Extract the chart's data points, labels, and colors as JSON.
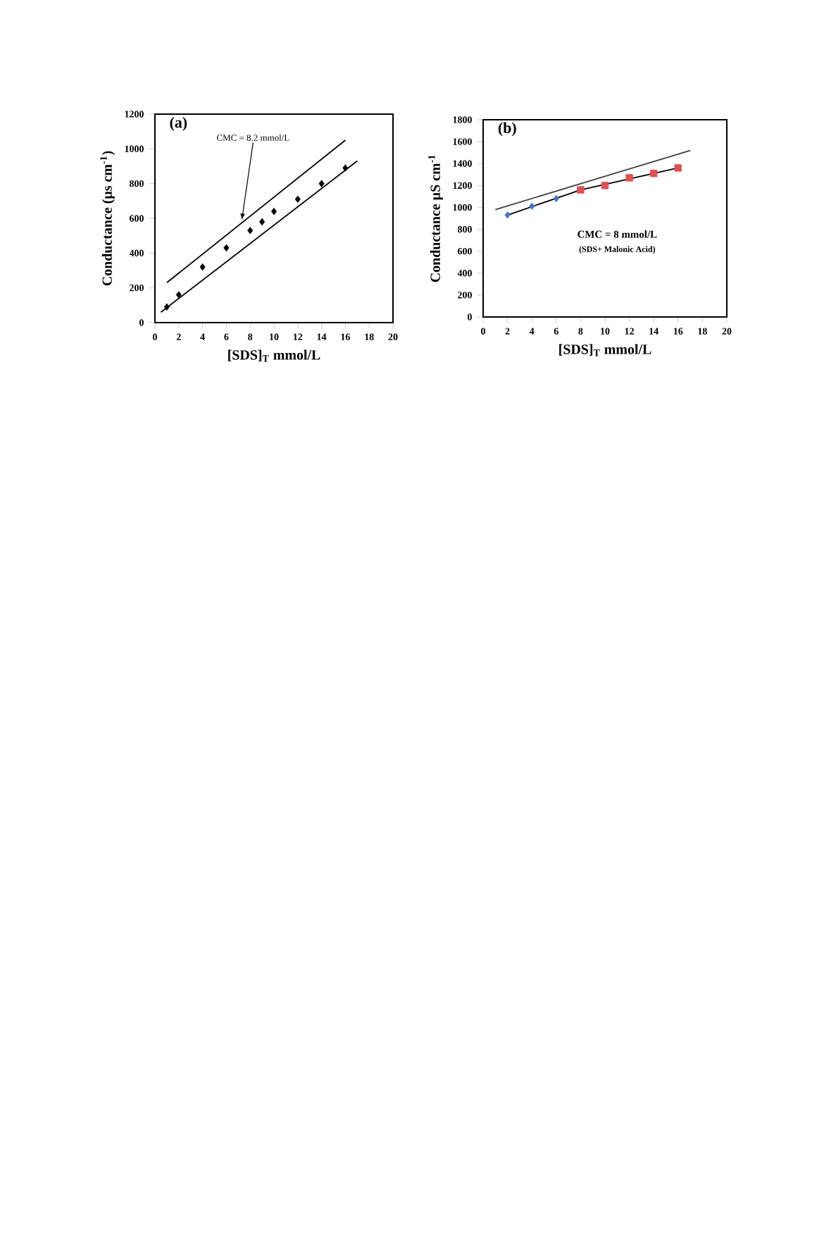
{
  "chart_data": [
    {
      "type": "scatter",
      "title": "(a)",
      "xlabel": "[SDS]$_{T}$ mmol/L",
      "ylabel": "Conductance  (µs cm$^{-1}$)",
      "xlim": [
        0,
        20
      ],
      "xticks": [
        0,
        2,
        4,
        6,
        8,
        10,
        12,
        14,
        16,
        18,
        20
      ],
      "ylim": [
        0,
        1200
      ],
      "yticks": [
        0,
        200,
        400,
        600,
        800,
        1000,
        1200
      ],
      "series": [
        {
          "color": "#000000",
          "marker": "diamond",
          "x": [
            1,
            2,
            4,
            6,
            8,
            9,
            10,
            12,
            14,
            16
          ],
          "values": [
            90,
            160,
            320,
            430,
            530,
            580,
            640,
            710,
            800,
            890
          ]
        },
        {
          "type": "line",
          "color": "#000000",
          "marker": "none",
          "line_style": "solid",
          "x": [
            0.5,
            17
          ],
          "values": [
            60,
            930
          ]
        },
        {
          "type": "line",
          "color": "#000000",
          "marker": "none",
          "line_style": "solid",
          "x": [
            1,
            16
          ],
          "values": [
            230,
            1050
          ]
        }
      ],
      "annotations": [
        {
          "text": "CMC = 8.2 mmol/L",
          "x": 7.3,
          "y": 590
        }
      ]
    },
    {
      "type": "scatter",
      "title": "(b)",
      "xlabel": "[SDS]$_{T}$ mmol/L",
      "ylabel": "Conductance µS cm$^{-1}$",
      "xlim": [
        0,
        20
      ],
      "xticks": [
        0,
        2,
        4,
        6,
        8,
        10,
        12,
        14,
        16,
        18,
        20
      ],
      "ylim": [
        0,
        1800
      ],
      "yticks": [
        0,
        200,
        400,
        600,
        800,
        1000,
        1200,
        1400,
        1600,
        1800
      ],
      "series": [
        {
          "type": "line",
          "color": "#404040",
          "marker": "none",
          "line_style": "solid",
          "x": [
            1,
            17
          ],
          "values": [
            980,
            1520
          ]
        },
        {
          "type": "line",
          "color": "#000000",
          "marker": "none",
          "line_style": "solid",
          "x": [
            2,
            8,
            16
          ],
          "values": [
            930,
            1160,
            1360
          ]
        },
        {
          "color": "#4472c4",
          "marker": "diamond",
          "x": [
            2,
            4,
            6
          ],
          "values": [
            930,
            1010,
            1080
          ]
        },
        {
          "color": "#e05050",
          "marker": "square",
          "x": [
            8,
            10,
            12,
            14,
            16
          ],
          "values": [
            1160,
            1200,
            1270,
            1310,
            1360
          ]
        }
      ],
      "annotations": [
        "CMC = 8 mmol/L",
        "(SDS+ Malonic Acid)"
      ]
    }
  ]
}
